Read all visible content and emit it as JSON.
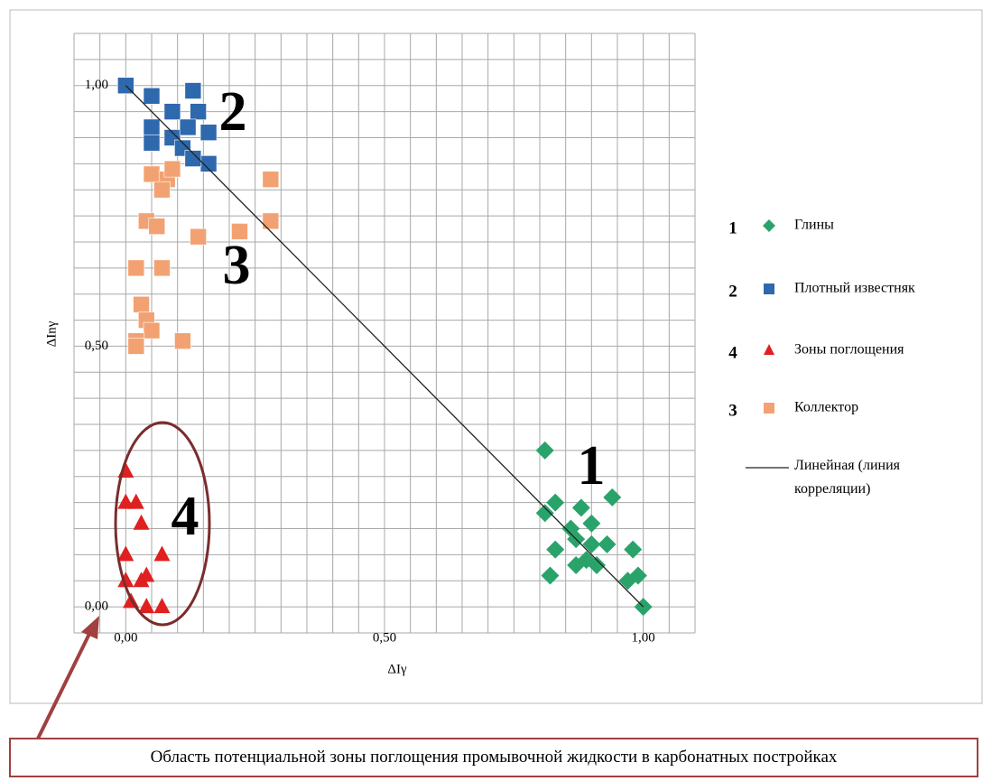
{
  "chart_data": {
    "type": "scatter",
    "x_label": "ΔIγ",
    "y_label": "ΔInγ",
    "xlim": [
      -0.1,
      1.1
    ],
    "ylim": [
      -0.05,
      1.1
    ],
    "xticks": [
      {
        "value": 0,
        "label": "0,00"
      },
      {
        "value": 0.5,
        "label": "0,50"
      },
      {
        "value": 1,
        "label": "1,00"
      }
    ],
    "yticks": [
      {
        "value": 0,
        "label": "0,00"
      },
      {
        "value": 0.5,
        "label": "0,50"
      },
      {
        "value": 1,
        "label": "1,00"
      }
    ],
    "xgrid": [
      -0.1,
      -0.05,
      0,
      0.05,
      0.1,
      0.15,
      0.2,
      0.25,
      0.3,
      0.35,
      0.4,
      0.45,
      0.5,
      0.55,
      0.6,
      0.65,
      0.7,
      0.75,
      0.8,
      0.85,
      0.9,
      0.95,
      1,
      1.05,
      1.1
    ],
    "ygrid": [
      -0.05,
      0,
      0.05,
      0.1,
      0.15,
      0.2,
      0.25,
      0.3,
      0.35,
      0.4,
      0.45,
      0.5,
      0.55,
      0.6,
      0.65,
      0.7,
      0.75,
      0.8,
      0.85,
      0.9,
      0.95,
      1,
      1.05,
      1.1
    ],
    "grid": true,
    "legend": "right",
    "series": [
      {
        "name": "Глины",
        "number": "1",
        "marker": "diamond",
        "color": "#2aa36b",
        "x": [
          0.81,
          0.81,
          0.83,
          0.83,
          0.82,
          0.86,
          0.87,
          0.88,
          0.87,
          0.9,
          0.9,
          0.89,
          0.91,
          0.93,
          0.94,
          0.98,
          0.99,
          0.97,
          1.0
        ],
        "values": [
          0.3,
          0.18,
          0.2,
          0.11,
          0.06,
          0.15,
          0.08,
          0.19,
          0.13,
          0.16,
          0.12,
          0.09,
          0.08,
          0.12,
          0.21,
          0.11,
          0.06,
          0.05,
          0.0
        ]
      },
      {
        "name": "Плотный известняк",
        "number": "2",
        "marker": "square",
        "color": "#2e68ad",
        "x": [
          0,
          0.05,
          0.13,
          0.09,
          0.14,
          0.05,
          0.09,
          0.12,
          0.16,
          0.05,
          0.11,
          0.16,
          0.13
        ],
        "values": [
          1.0,
          0.98,
          0.99,
          0.95,
          0.95,
          0.92,
          0.9,
          0.92,
          0.91,
          0.89,
          0.88,
          0.85,
          0.86
        ]
      },
      {
        "name": "Зоны поглощения",
        "number": "4",
        "marker": "triangle",
        "color": "#e02020",
        "x": [
          0,
          0,
          0.02,
          0.03,
          0,
          0.07,
          0.04,
          0.03,
          0,
          0.01,
          0.04,
          0.07
        ],
        "values": [
          0.26,
          0.2,
          0.2,
          0.16,
          0.1,
          0.1,
          0.06,
          0.05,
          0.05,
          0.01,
          0.0,
          0.0
        ]
      },
      {
        "name": "Коллектор",
        "number": "3",
        "marker": "square",
        "color": "#f2a272",
        "x": [
          0.05,
          0.08,
          0.07,
          0.09,
          0.28,
          0.04,
          0.06,
          0.28,
          0.22,
          0.14,
          0.02,
          0.07,
          0.03,
          0.04,
          0.05,
          0.02,
          0.11,
          0.02
        ],
        "values": [
          0.83,
          0.82,
          0.8,
          0.84,
          0.82,
          0.74,
          0.73,
          0.74,
          0.72,
          0.71,
          0.65,
          0.65,
          0.58,
          0.55,
          0.53,
          0.51,
          0.51,
          0.5
        ]
      },
      {
        "name": "Линейная (линия корреляции)",
        "marker": "line",
        "color": "#222222",
        "x": [
          0,
          1
        ],
        "values": [
          1,
          0
        ]
      }
    ],
    "annotations": [
      "1",
      "2",
      "3",
      "4"
    ]
  },
  "caption": "Область потенциальной зоны поглощения промывочной жидкости в карбонатных постройках"
}
